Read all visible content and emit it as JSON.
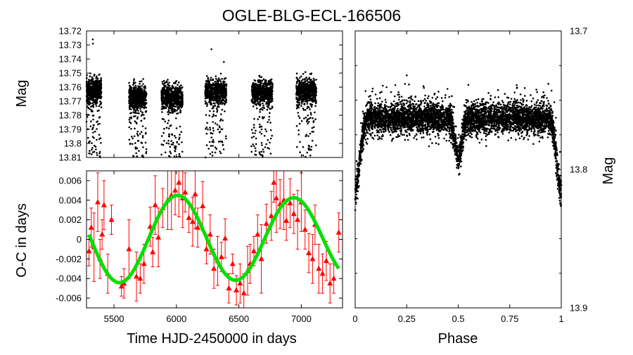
{
  "chart_data": [
    {
      "type": "scatter",
      "panel": "top-left",
      "title": "OGLE-BLG-ECL-166506",
      "xlabel": "",
      "ylabel": "Mag",
      "xlim": [
        5280,
        7330
      ],
      "ylim": [
        13.81,
        13.72
      ],
      "y_inverted": true,
      "yticks": [
        "13.72",
        "13.73",
        "13.74",
        "13.75",
        "13.76",
        "13.77",
        "13.78",
        "13.79",
        "13.8",
        "13.81"
      ],
      "ytick_values": [
        13.72,
        13.73,
        13.74,
        13.75,
        13.76,
        13.77,
        13.78,
        13.79,
        13.8,
        13.81
      ],
      "seasons": [
        {
          "start": 5280,
          "end": 5400,
          "center": 13.763
        },
        {
          "start": 5620,
          "end": 5760,
          "center": 13.767
        },
        {
          "start": 5880,
          "end": 6050,
          "center": 13.767
        },
        {
          "start": 6230,
          "end": 6400,
          "center": 13.763
        },
        {
          "start": 6600,
          "end": 6770,
          "center": 13.764
        },
        {
          "start": 6960,
          "end": 7120,
          "center": 13.763
        }
      ],
      "series_color": "#000000"
    },
    {
      "type": "scatter",
      "panel": "bottom-left",
      "xlabel": "Time HJD-2450000 in days",
      "ylabel": "O-C in days",
      "xlim": [
        5280,
        7330
      ],
      "ylim": [
        -0.007,
        0.007
      ],
      "xticks": [
        "5500",
        "6000",
        "6500",
        "7000"
      ],
      "xtick_values": [
        5500,
        6000,
        6500,
        7000
      ],
      "yticks": [
        "0.006",
        "0.004",
        "0.002",
        "0",
        "-0.002",
        "-0.004",
        "-0.006"
      ],
      "ytick_values": [
        0.006,
        0.004,
        0.002,
        0,
        -0.002,
        -0.004,
        -0.006
      ],
      "points": {
        "x": [
          5300,
          5318,
          5340,
          5370,
          5388,
          5405,
          5420,
          5450,
          5480,
          5560,
          5580,
          5620,
          5680,
          5710,
          5740,
          5790,
          5810,
          5830,
          5855,
          5890,
          5930,
          5960,
          5990,
          6020,
          6050,
          6070,
          6100,
          6130,
          6150,
          6170,
          6210,
          6240,
          6270,
          6300,
          6330,
          6360,
          6390,
          6420,
          6450,
          6480,
          6510,
          6540,
          6570,
          6590,
          6620,
          6650,
          6680,
          6720,
          6760,
          6780,
          6800,
          6830,
          6860,
          6880,
          6910,
          6940,
          6970,
          7000,
          7030,
          7060,
          7090,
          7110,
          7140,
          7170,
          7200,
          7230,
          7260,
          7300
        ],
        "y": [
          -0.0012,
          0.0012,
          -0.0008,
          0.0038,
          -0.002,
          0.0005,
          0.0035,
          -0.0035,
          0.002,
          -0.0048,
          -0.0045,
          -0.001,
          -0.0038,
          -0.004,
          -0.0025,
          0.0013,
          -0.0013,
          0.0035,
          0.0002,
          0.0032,
          0.004,
          0.0045,
          0.005,
          0.0058,
          0.0042,
          0.0048,
          0.0022,
          0.0018,
          0.0046,
          0.0012,
          0.0034,
          -0.001,
          0.0005,
          -0.003,
          -0.0022,
          -0.0018,
          0.0001,
          -0.005,
          -0.0025,
          -0.0052,
          -0.0045,
          -0.0055,
          -0.0032,
          -0.0025,
          -0.0012,
          0.0005,
          -0.002,
          0.0016,
          0.0024,
          0.0058,
          0.0042,
          0.0036,
          0.004,
          0.0019,
          0.0037,
          0.0026,
          0.002,
          0.0038,
          0.001,
          -0.0014,
          -0.002,
          0.0015,
          -0.003,
          -0.0035,
          -0.0022,
          -0.0045,
          -0.004,
          0.0007
        ],
        "err": [
          0.0015,
          0.002,
          0.0035,
          0.003,
          0.002,
          0.0015,
          0.0025,
          0.002,
          0.0015,
          0.001,
          0.0015,
          0.003,
          0.0025,
          0.0015,
          0.002,
          0.002,
          0.0015,
          0.003,
          0.003,
          0.002,
          0.003,
          0.0035,
          0.0025,
          0.0035,
          0.003,
          0.002,
          0.0015,
          0.0025,
          0.0035,
          0.002,
          0.0025,
          0.0015,
          0.002,
          0.002,
          0.0025,
          0.0015,
          0.002,
          0.0015,
          0.001,
          0.0015,
          0.002,
          0.002,
          0.0025,
          0.002,
          0.0015,
          0.002,
          0.0035,
          0.002,
          0.0025,
          0.002,
          0.0035,
          0.0025,
          0.003,
          0.002,
          0.0025,
          0.002,
          0.003,
          0.003,
          0.002,
          0.002,
          0.0025,
          0.002,
          0.0025,
          0.002,
          0.002,
          0.002,
          0.0015,
          0.002
        ],
        "color": "#ff0000",
        "marker": "triangle"
      },
      "fit": {
        "model": "sinusoid",
        "amplitude": 0.0044,
        "period": 930,
        "phase_x": 6010,
        "offset": 0.0005,
        "decay": 1e-07,
        "x_start": 5300,
        "x_end": 7300,
        "color": "#00e000"
      }
    },
    {
      "type": "scatter",
      "panel": "right",
      "xlabel": "Phase",
      "ylabel": "Mag",
      "xlim": [
        0,
        1
      ],
      "ylim": [
        13.9,
        13.7
      ],
      "y_inverted": true,
      "xticks": [
        "0",
        "0.25",
        "0.5",
        "0.75",
        "1"
      ],
      "xtick_values": [
        0,
        0.25,
        0.5,
        0.75,
        1
      ],
      "yticks": [
        "13.7",
        "13.8",
        "13.9"
      ],
      "ytick_values": [
        13.7,
        13.8,
        13.9
      ],
      "baseline": 13.763,
      "primary_minimum": {
        "phase": 0.0,
        "depth": 13.815,
        "width": 0.03
      },
      "secondary_minimum": {
        "phase": 0.5,
        "depth": 13.79,
        "width": 0.025
      },
      "series_color": "#000000"
    }
  ]
}
